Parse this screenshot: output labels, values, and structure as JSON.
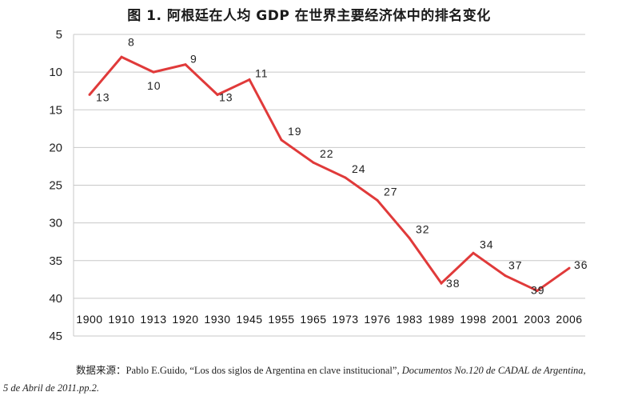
{
  "chart_data": {
    "type": "line",
    "title": "图 1. 阿根廷在人均 GDP 在世界主要经济体中的排名变化",
    "categories": [
      "1900",
      "1910",
      "1913",
      "1920",
      "1930",
      "1945",
      "1955",
      "1965",
      "1973",
      "1976",
      "1983",
      "1989",
      "1998",
      "2001",
      "2003",
      "2006"
    ],
    "series": [
      {
        "values": [
          13,
          8,
          10,
          9,
          13,
          11,
          19,
          22,
          24,
          27,
          32,
          38,
          34,
          37,
          39,
          36
        ],
        "color": "#e03a3a"
      }
    ],
    "data_labels": [
      "13",
      "8",
      "10",
      "9",
      "13",
      "11",
      "19",
      "22",
      "24",
      "27",
      "32",
      "38",
      "34",
      "37",
      "39",
      "36"
    ],
    "y_ticks": [
      "5",
      "10",
      "15",
      "20",
      "25",
      "30",
      "35",
      "40",
      "45"
    ],
    "ylim": [
      5,
      45
    ],
    "y_inverted": true,
    "grid": "horizontal",
    "xlabel": "",
    "ylabel": ""
  },
  "source": {
    "prefix": "数据来源：Pablo E.Guido, “Los dos siglos de Argentina en clave institucional”, ",
    "italic1": "Documentos No.120 de CADAL de Argentina,",
    "italic2": "5 de Abril de 2011.pp.2."
  }
}
